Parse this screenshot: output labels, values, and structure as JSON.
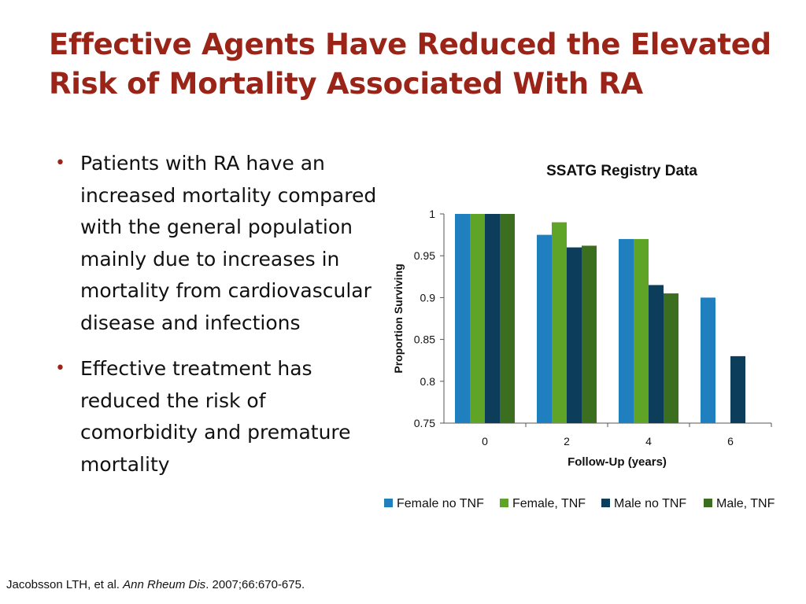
{
  "slide": {
    "title_line1": "Effective Agents Have Reduced the Elevated",
    "title_line2": "Risk of Mortality Associated With RA",
    "bullets": [
      "Patients with RA have an increased mortality compared with the general population mainly due to increases in mortality from cardiovascular disease and infections",
      "Effective treatment has reduced the risk of comorbidity and premature mortality"
    ],
    "citation": {
      "authors": "Jacobsson LTH, et al.",
      "journal": "Ann Rheum Dis",
      "details": ". 2007;66:670-675."
    },
    "bullet_color": "#9b2418",
    "title_color": "#9b2418"
  },
  "chart_data": {
    "type": "bar",
    "title": "SSATG Registry Data",
    "xlabel": "Follow-Up (years)",
    "ylabel": "Proportion Surviving",
    "categories": [
      "0",
      "2",
      "4",
      "6"
    ],
    "ylim": [
      0.75,
      1
    ],
    "yticks": [
      0.75,
      0.8,
      0.85,
      0.9,
      0.95,
      1
    ],
    "ytick_labels": [
      "0.75",
      "0.8",
      "0.85",
      "0.9",
      "0.95",
      "1"
    ],
    "grid": false,
    "legend_position": "bottom",
    "series": [
      {
        "name": "Female no TNF",
        "color": "#1f7fbf",
        "values": [
          1.0,
          0.975,
          0.97,
          0.9
        ]
      },
      {
        "name": "Female, TNF",
        "color": "#5fa327",
        "values": [
          1.0,
          0.99,
          0.97,
          null
        ]
      },
      {
        "name": "Male no TNF",
        "color": "#0c3d5a",
        "values": [
          1.0,
          0.96,
          0.915,
          0.83
        ]
      },
      {
        "name": "Male, TNF",
        "color": "#3b6e1e",
        "values": [
          1.0,
          0.962,
          0.905,
          null
        ]
      }
    ]
  }
}
